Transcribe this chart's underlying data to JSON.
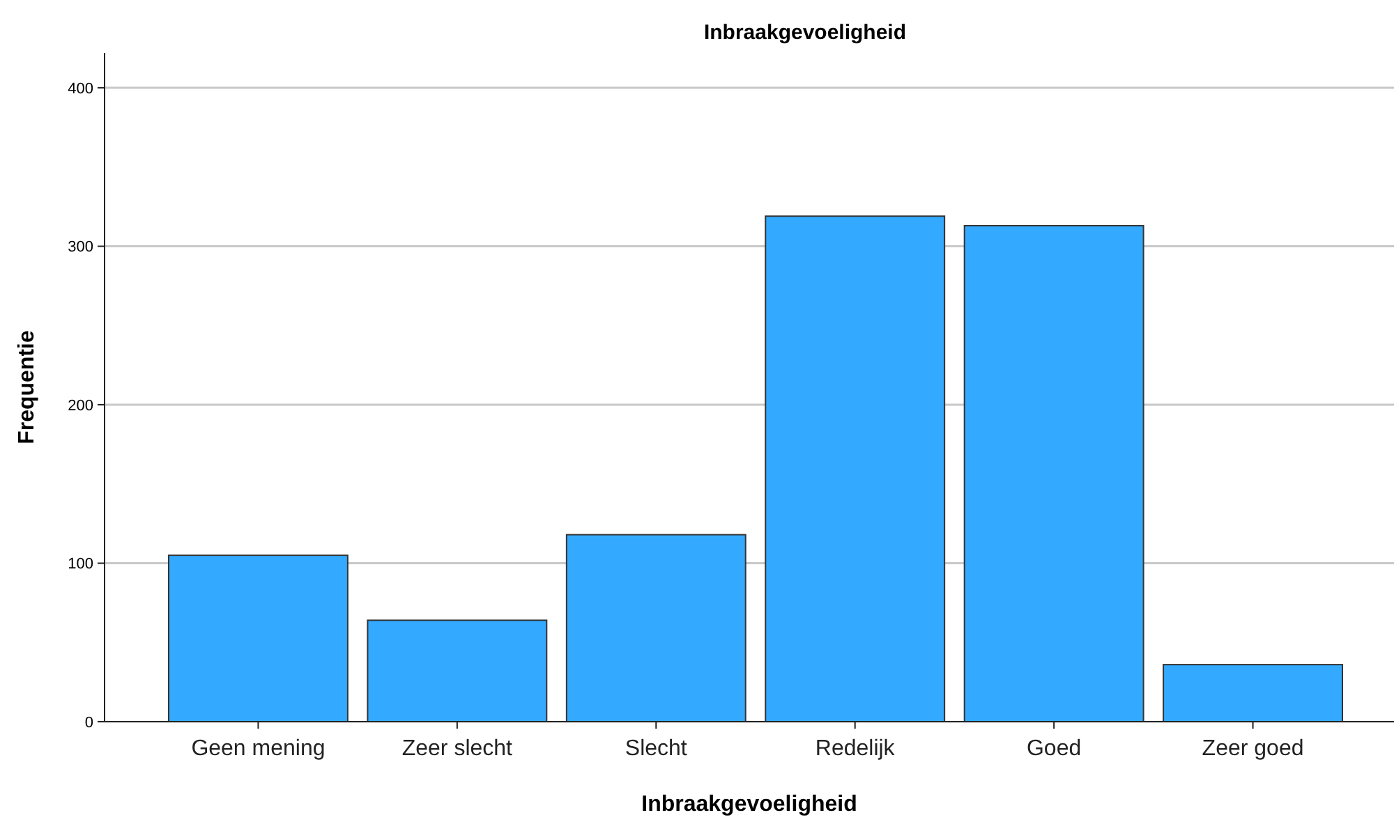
{
  "chart_data": {
    "type": "bar",
    "title": "Inbraakgevoeligheid",
    "xlabel": "Inbraakgevoeligheid",
    "ylabel": "Frequentie",
    "categories": [
      "Geen mening",
      "Zeer slecht",
      "Slecht",
      "Redelijk",
      "Goed",
      "Zeer goed"
    ],
    "values": [
      105,
      64,
      118,
      319,
      313,
      36
    ],
    "color": "#33aaff",
    "ylim": [
      0,
      422
    ],
    "yticks": [
      0,
      100,
      200,
      300,
      400
    ],
    "grid": "y"
  }
}
